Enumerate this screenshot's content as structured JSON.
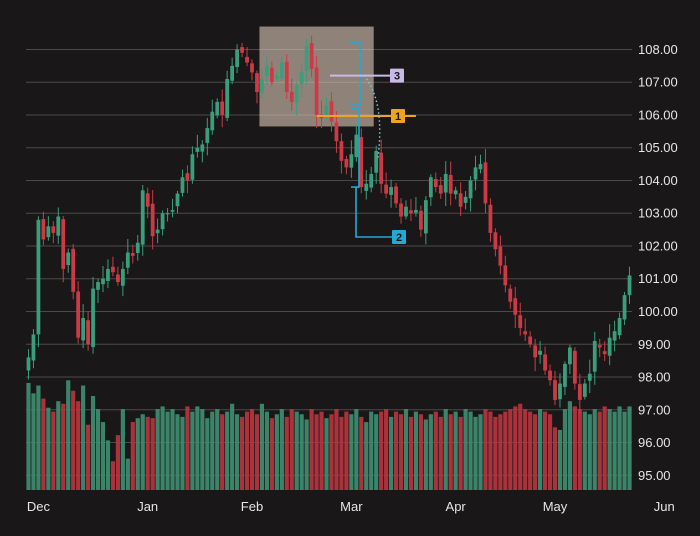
{
  "chart_data": {
    "type": "candlestick",
    "title": "",
    "xlabel": "",
    "ylabel": "",
    "grid": "horizontal",
    "y_axis_position": "right",
    "ylim": [
      94.55,
      108.9
    ],
    "y_ticks": [
      "108.00",
      "107.00",
      "106.00",
      "105.00",
      "104.00",
      "103.00",
      "102.00",
      "101.00",
      "100.00",
      "99.00",
      "98.00",
      "97.00",
      "96.00",
      "95.00"
    ],
    "x_ticks": [
      {
        "label": "Dec",
        "index": 2
      },
      {
        "label": "Jan",
        "index": 24
      },
      {
        "label": "Feb",
        "index": 45
      },
      {
        "label": "Mar",
        "index": 65
      },
      {
        "label": "Apr",
        "index": 86
      },
      {
        "label": "May",
        "index": 106
      },
      {
        "label": "Jun",
        "index": 128
      }
    ],
    "colors": {
      "up": "#3a9e7a",
      "down": "#cc3b45",
      "vol_up": "#3d8a6e",
      "vol_down": "#b2343d",
      "grid": "#4a4a4a",
      "text": "#e6e6e6",
      "shade": "#d8c7b4",
      "ann1": "#f0a31c",
      "ann2": "#22a9d6",
      "ann3": "#c9b9e8"
    },
    "closes": [
      98.6,
      99.3,
      102.8,
      102.2,
      102.6,
      102.4,
      102.9,
      101.3,
      101.8,
      100.6,
      99.2,
      99.8,
      99.0,
      100.7,
      100.9,
      101.0,
      101.3,
      101.2,
      100.9,
      101.3,
      101.8,
      101.7,
      102.1,
      103.7,
      103.2,
      102.3,
      102.5,
      103.0,
      103.0,
      103.1,
      103.6,
      104.1,
      104.0,
      104.8,
      105.0,
      105.1,
      105.6,
      106.1,
      106.4,
      106.0,
      107.1,
      107.5,
      108.0,
      107.9,
      107.6,
      107.3,
      106.7,
      107.1,
      107.5,
      107.0,
      107.2,
      107.6,
      106.7,
      106.4,
      106.9,
      107.3,
      108.1,
      107.4,
      106.0,
      105.9,
      106.3,
      105.8,
      105.2,
      104.6,
      104.4,
      104.8,
      105.4,
      103.8,
      103.9,
      104.2,
      104.9,
      103.9,
      103.6,
      103.8,
      103.3,
      102.9,
      103.2,
      103.0,
      103.1,
      102.5,
      103.4,
      104.1,
      103.8,
      103.6,
      104.2,
      103.6,
      103.7,
      103.2,
      103.5,
      104.0,
      104.4,
      104.5,
      103.3,
      102.4,
      101.9,
      101.4,
      100.8,
      100.3,
      99.9,
      99.5,
      99.3,
      99.0,
      98.6,
      98.8,
      98.2,
      97.9,
      97.3,
      97.8,
      98.4,
      98.9,
      97.8,
      97.3,
      97.8,
      98.1,
      99.1,
      98.9,
      98.7,
      99.2,
      99.4,
      99.8,
      100.5,
      101.1
    ],
    "volume_scale": [
      0,
      0.98
    ],
    "volumes": [
      0.82,
      0.74,
      0.8,
      0.7,
      0.63,
      0.6,
      0.68,
      0.66,
      0.84,
      0.76,
      0.68,
      0.8,
      0.5,
      0.72,
      0.62,
      0.52,
      0.38,
      0.22,
      0.42,
      0.62,
      0.24,
      0.52,
      0.55,
      0.58,
      0.56,
      0.55,
      0.62,
      0.64,
      0.6,
      0.62,
      0.58,
      0.56,
      0.64,
      0.6,
      0.64,
      0.62,
      0.55,
      0.6,
      0.62,
      0.58,
      0.6,
      0.66,
      0.58,
      0.56,
      0.6,
      0.62,
      0.58,
      0.66,
      0.6,
      0.55,
      0.58,
      0.62,
      0.56,
      0.62,
      0.6,
      0.58,
      0.54,
      0.62,
      0.58,
      0.6,
      0.55,
      0.58,
      0.62,
      0.56,
      0.6,
      0.58,
      0.62,
      0.56,
      0.52,
      0.6,
      0.58,
      0.6,
      0.62,
      0.56,
      0.6,
      0.58,
      0.62,
      0.56,
      0.6,
      0.58,
      0.54,
      0.58,
      0.6,
      0.56,
      0.62,
      0.58,
      0.6,
      0.56,
      0.62,
      0.6,
      0.56,
      0.58,
      0.62,
      0.6,
      0.56,
      0.58,
      0.6,
      0.62,
      0.64,
      0.66,
      0.62,
      0.6,
      0.58,
      0.62,
      0.6,
      0.58,
      0.48,
      0.46,
      0.62,
      0.68,
      0.64,
      0.62,
      0.6,
      0.58,
      0.62,
      0.6,
      0.64,
      0.62,
      0.6,
      0.64,
      0.6,
      0.64
    ],
    "annotations": [
      {
        "label": "1",
        "price": 105.97,
        "from_index": 58,
        "to_index": 78,
        "color_key": "ann1"
      },
      {
        "label": "2",
        "bracket_top": 106.2,
        "bracket_bottom": 103.8,
        "index": 76,
        "color_key": "ann2"
      },
      {
        "label": "3",
        "bracket_top": 108.2,
        "bracket_bottom": 106.3,
        "index": 73,
        "color_key": "ann3"
      }
    ],
    "highlight_box": {
      "from_index": 47,
      "to_index": 69,
      "price_top": 108.7,
      "price_bottom": 105.65
    }
  }
}
